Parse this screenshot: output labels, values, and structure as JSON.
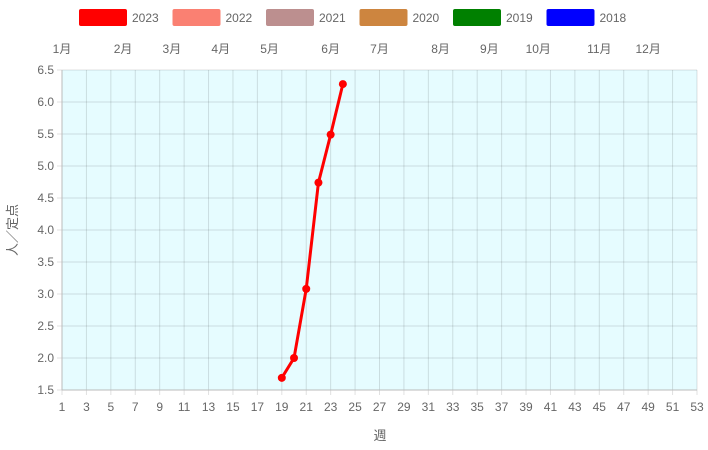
{
  "chart_data": {
    "type": "line",
    "xlabel": "週",
    "ylabel": "人／定点",
    "xlim": [
      1,
      53
    ],
    "ylim": [
      1.5,
      6.5
    ],
    "x_ticks": [
      1,
      3,
      5,
      7,
      9,
      11,
      13,
      15,
      17,
      19,
      21,
      23,
      25,
      27,
      29,
      31,
      33,
      35,
      37,
      39,
      41,
      43,
      45,
      47,
      49,
      51,
      53
    ],
    "y_ticks": [
      1.5,
      2.0,
      2.5,
      3.0,
      3.5,
      4.0,
      4.5,
      5.0,
      5.5,
      6.0,
      6.5
    ],
    "grid": true,
    "legend_position": "top",
    "background": "#e6fcff",
    "month_labels": [
      {
        "label": "1月",
        "week": 1
      },
      {
        "label": "2月",
        "week": 6
      },
      {
        "label": "3月",
        "week": 10
      },
      {
        "label": "4月",
        "week": 14
      },
      {
        "label": "5月",
        "week": 18
      },
      {
        "label": "6月",
        "week": 23
      },
      {
        "label": "7月",
        "week": 27
      },
      {
        "label": "8月",
        "week": 32
      },
      {
        "label": "9月",
        "week": 36
      },
      {
        "label": "10月",
        "week": 40
      },
      {
        "label": "11月",
        "week": 45
      },
      {
        "label": "12月",
        "week": 49
      }
    ],
    "series": [
      {
        "name": "2023",
        "color": "#ff0000",
        "x": [
          19,
          20,
          21,
          22,
          23,
          24
        ],
        "values": [
          1.69,
          2.0,
          3.08,
          4.74,
          5.49,
          6.28
        ]
      },
      {
        "name": "2022",
        "color": "#fa8072",
        "x": [],
        "values": []
      },
      {
        "name": "2021",
        "color": "#bc8f8f",
        "x": [],
        "values": []
      },
      {
        "name": "2020",
        "color": "#cd853f",
        "x": [],
        "values": []
      },
      {
        "name": "2019",
        "color": "#008000",
        "x": [],
        "values": []
      },
      {
        "name": "2018",
        "color": "#0000ff",
        "x": [],
        "values": []
      }
    ]
  }
}
